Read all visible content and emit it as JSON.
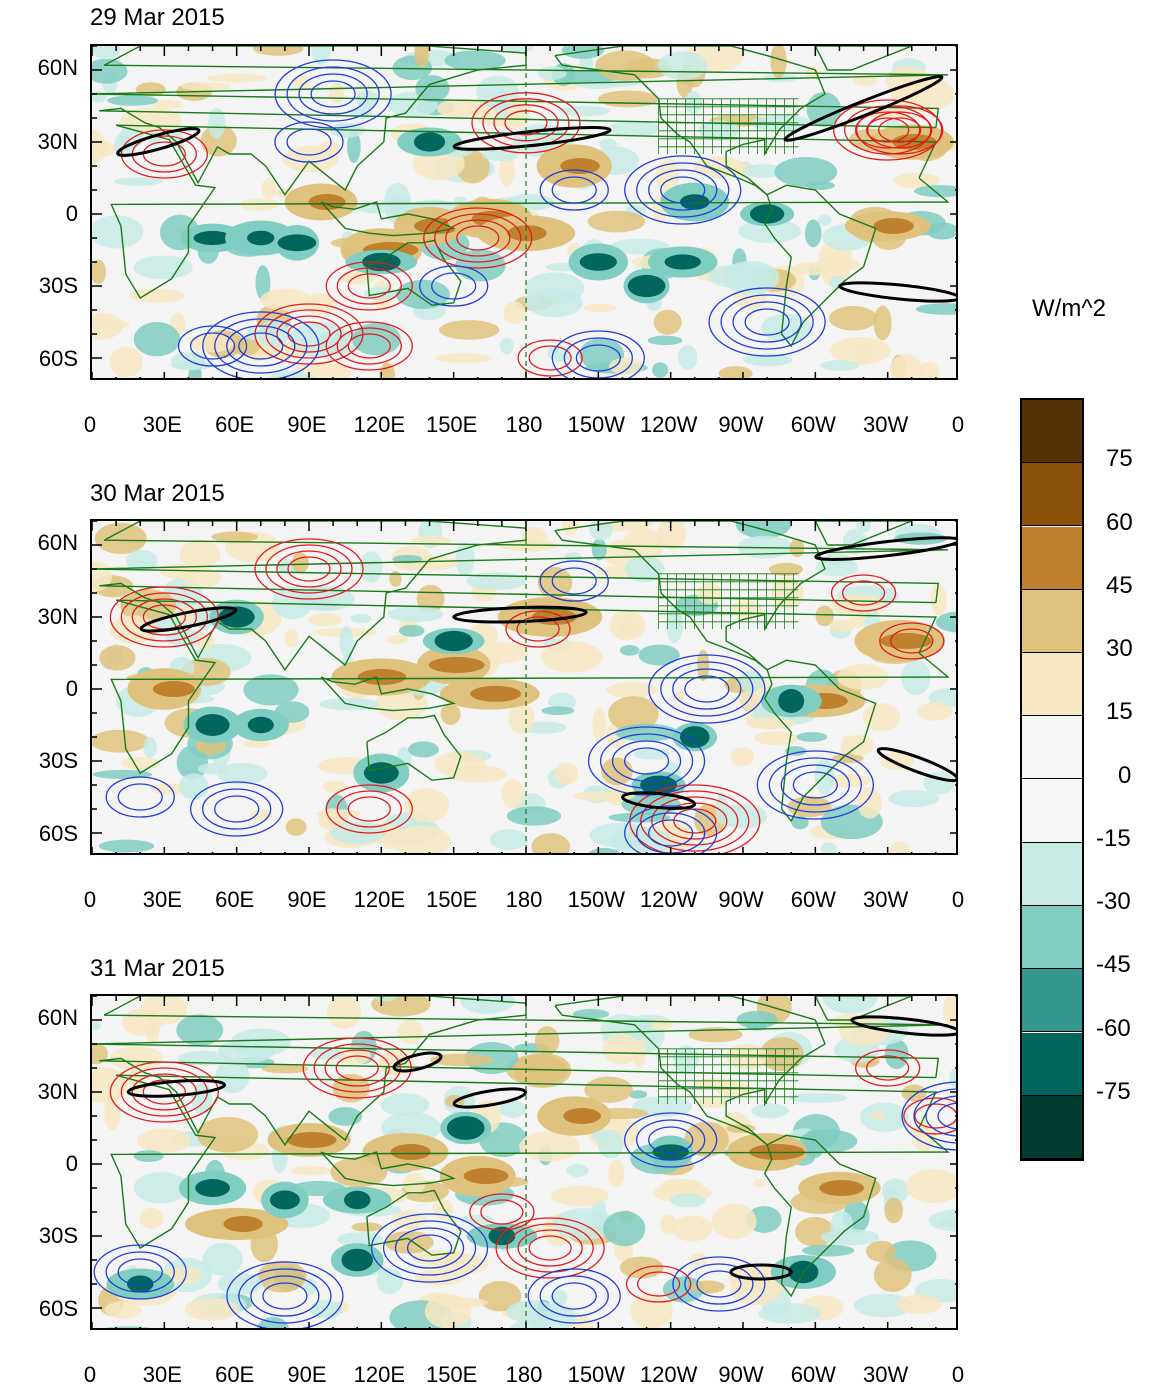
{
  "panels": [
    {
      "title": "29 Mar 2015"
    },
    {
      "title": "30 Mar 2015"
    },
    {
      "title": "31 Mar 2015"
    }
  ],
  "lat_labels": [
    "60N",
    "30N",
    "0",
    "30S",
    "60S"
  ],
  "lon_labels": [
    "0",
    "30E",
    "60E",
    "90E",
    "120E",
    "150E",
    "180",
    "150W",
    "120W",
    "90W",
    "60W",
    "30W",
    "0"
  ],
  "colorbar": {
    "units": "W/m^2",
    "labels": [
      "75",
      "60",
      "45",
      "30",
      "15",
      "0",
      "-15",
      "-30",
      "-45",
      "-60",
      "-75"
    ],
    "colors": [
      "#543005",
      "#8c510a",
      "#bf812d",
      "#dfc27d",
      "#f6e8c3",
      "#f5f5f5",
      "#f5f5f5",
      "#c7eae5",
      "#80cdc1",
      "#35978f",
      "#01665e",
      "#003c30"
    ]
  },
  "contour_colors": {
    "positive": "#e31a1c",
    "negative": "#1f3fd6",
    "coast": "#1a7a1a",
    "jet": "#000000"
  }
}
